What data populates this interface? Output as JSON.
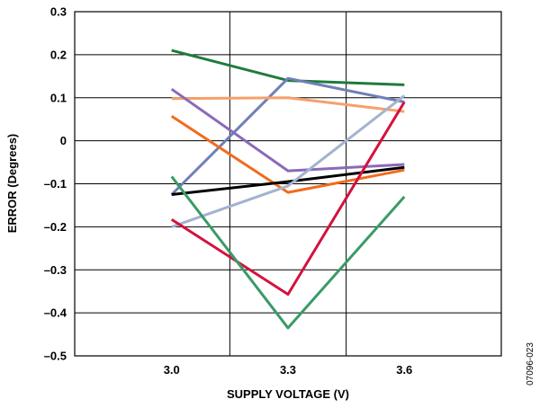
{
  "chart_data": {
    "type": "line",
    "xlabel": "SUPPLY VOLTAGE (V)",
    "ylabel": "ERROR (Degrees)",
    "x_ticks": [
      "3.0",
      "3.3",
      "3.6"
    ],
    "y_ticks": [
      "0.3",
      "0.2",
      "0.1",
      "0",
      "–0.1",
      "–0.2",
      "–0.3",
      "–0.4",
      "–0.5"
    ],
    "x": [
      3.0,
      3.3,
      3.6
    ],
    "xlim": [
      2.75,
      3.85
    ],
    "ylim": [
      -0.5,
      0.3
    ],
    "grid": true,
    "figure_id": "07096-023",
    "series": [
      {
        "color": "#1e7b3c",
        "values": [
          0.21,
          0.14,
          0.13
        ]
      },
      {
        "color": "#6f7fb5",
        "values": [
          -0.125,
          0.145,
          0.09
        ]
      },
      {
        "color": "#f6a06c",
        "values": [
          0.098,
          0.1,
          0.068
        ]
      },
      {
        "color": "#8a6ab8",
        "values": [
          0.12,
          -0.07,
          -0.055
        ]
      },
      {
        "color": "#f26b1d",
        "values": [
          0.057,
          -0.12,
          -0.068
        ]
      },
      {
        "color": "#000000",
        "values": [
          -0.125,
          -0.095,
          -0.062
        ]
      },
      {
        "color": "#a3b3cf",
        "values": [
          -0.2,
          -0.105,
          0.105
        ]
      },
      {
        "color": "#d3123f",
        "values": [
          -0.183,
          -0.357,
          0.09
        ]
      },
      {
        "color": "#3a9a68",
        "values": [
          -0.083,
          -0.435,
          -0.13
        ]
      }
    ]
  }
}
